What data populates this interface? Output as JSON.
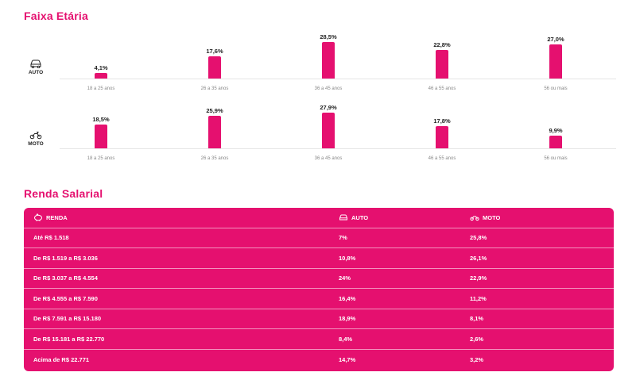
{
  "faixa_etaria": {
    "title": "Faixa Etária"
  },
  "renda_salarial": {
    "title": "Renda Salarial",
    "headers": {
      "renda": "RENDA",
      "auto": "AUTO",
      "moto": "MOTO"
    },
    "rows": [
      {
        "renda": "Até R$ 1.518",
        "auto": "7%",
        "moto": "25,8%"
      },
      {
        "renda": "De R$ 1.519 a R$ 3.036",
        "auto": "10,8%",
        "moto": "26,1%"
      },
      {
        "renda": "De R$ 3.037 a R$ 4.554",
        "auto": "24%",
        "moto": "22,9%"
      },
      {
        "renda": "De R$ 4.555 a R$ 7.590",
        "auto": "16,4%",
        "moto": "11,2%"
      },
      {
        "renda": "De R$ 7.591 a R$ 15.180",
        "auto": "18,9%",
        "moto": "8,1%"
      },
      {
        "renda": "De R$ 15.181 a R$ 22.770",
        "auto": "8,4%",
        "moto": "2,6%"
      },
      {
        "renda": "Acima de R$ 22.771",
        "auto": "14,7%",
        "moto": "3,2%"
      }
    ]
  },
  "colors": {
    "accent": "#e5106f",
    "text": "#222222",
    "muted": "#888888"
  },
  "chart_data": [
    {
      "type": "bar",
      "title": "",
      "row_label": "AUTO",
      "icon": "car-icon",
      "categories": [
        "18 a 25 anos",
        "26 a 35 anos",
        "36 a 45 anos",
        "46 a 55 anos",
        "56 ou mais"
      ],
      "values": [
        4.1,
        17.6,
        28.5,
        22.8,
        27.0
      ],
      "value_labels": [
        "4,1%",
        "17,6%",
        "28,5%",
        "22,8%",
        "27,0%"
      ],
      "ylim": [
        0,
        30
      ],
      "grid": false
    },
    {
      "type": "bar",
      "title": "",
      "row_label": "MOTO",
      "icon": "motorcycle-icon",
      "categories": [
        "18 a 25 anos",
        "26 a 35 anos",
        "36 a 45 anos",
        "46 a 55 anos",
        "56 ou mais"
      ],
      "values": [
        18.5,
        25.9,
        27.9,
        17.8,
        9.9
      ],
      "value_labels": [
        "18,5%",
        "25,9%",
        "27,9%",
        "17,8%",
        "9,9%"
      ],
      "ylim": [
        0,
        30
      ],
      "grid": false
    },
    {
      "type": "table",
      "title": "",
      "columns": [
        "RENDA",
        "AUTO",
        "MOTO"
      ],
      "rows": [
        [
          "Até R$ 1.518",
          "7%",
          "25,8%"
        ],
        [
          "De R$ 1.519 a R$ 3.036",
          "10,8%",
          "26,1%"
        ],
        [
          "De R$ 3.037 a R$ 4.554",
          "24%",
          "22,9%"
        ],
        [
          "De R$ 4.555 a R$ 7.590",
          "16,4%",
          "11,2%"
        ],
        [
          "De R$ 7.591 a R$ 15.180",
          "18,9%",
          "8,1%"
        ],
        [
          "De R$ 15.181 a R$ 22.770",
          "8,4%",
          "2,6%"
        ],
        [
          "Acima de R$ 22.771",
          "14,7%",
          "3,2%"
        ]
      ]
    }
  ]
}
